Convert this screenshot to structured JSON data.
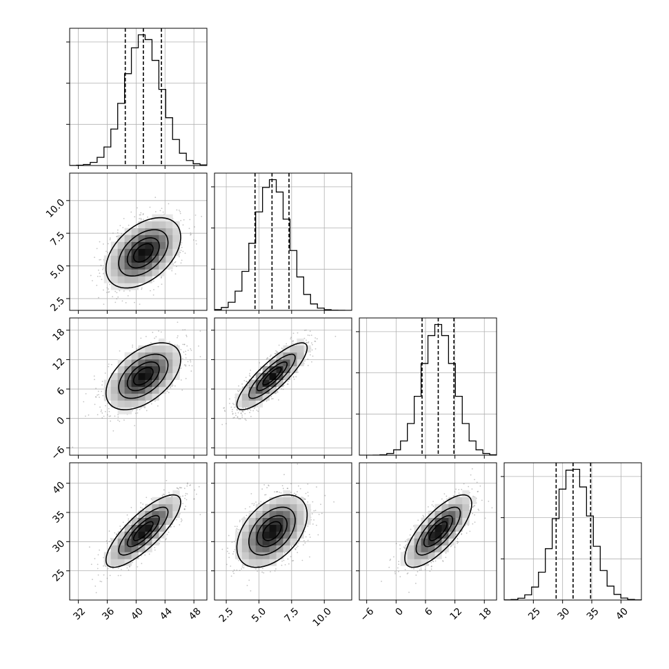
{
  "chart_data": {
    "type": "corner",
    "parameters": [
      {
        "range": [
          30.8,
          49.8
        ],
        "median": 41.0,
        "q_low": 38.5,
        "q_high": 43.5,
        "mean": 41.0,
        "sd": 2.5,
        "ticks": [
          {
            "v": 32,
            "label": "32"
          },
          {
            "v": 36,
            "label": "36"
          },
          {
            "v": 40,
            "label": "40"
          },
          {
            "v": 44,
            "label": "44"
          },
          {
            "v": 48,
            "label": "48"
          }
        ]
      },
      {
        "range": [
          1.6,
          12.1
        ],
        "median": 6.0,
        "q_low": 4.7,
        "q_high": 7.3,
        "mean": 6.0,
        "sd": 1.3,
        "ticks": [
          {
            "v": 2.5,
            "label": "2.5"
          },
          {
            "v": 5.0,
            "label": "5.0"
          },
          {
            "v": 7.5,
            "label": "7.5"
          },
          {
            "v": 10.0,
            "label": "10.0"
          }
        ]
      },
      {
        "range": [
          -7.5,
          20.5
        ],
        "median": 8.6,
        "q_low": 5.3,
        "q_high": 11.8,
        "mean": 8.6,
        "sd": 3.3,
        "ticks": [
          {
            "v": -6,
            "label": "−6"
          },
          {
            "v": 0,
            "label": "0"
          },
          {
            "v": 6,
            "label": "6"
          },
          {
            "v": 12,
            "label": "12"
          },
          {
            "v": 18,
            "label": "18"
          }
        ]
      },
      {
        "range": [
          20.0,
          43.5
        ],
        "median": 31.8,
        "q_low": 28.9,
        "q_high": 34.8,
        "mean": 31.8,
        "sd": 3.0,
        "ticks": [
          {
            "v": 25,
            "label": "25"
          },
          {
            "v": 30,
            "label": "30"
          },
          {
            "v": 35,
            "label": "35"
          },
          {
            "v": 40,
            "label": "40"
          }
        ]
      }
    ],
    "correlations": [
      [
        1.0,
        0.45,
        0.5,
        0.8
      ],
      [
        0.45,
        1.0,
        0.85,
        0.45
      ],
      [
        0.5,
        0.85,
        1.0,
        0.75
      ],
      [
        0.8,
        0.45,
        0.75,
        1.0
      ]
    ],
    "histogram_bins": 20,
    "contour_levels_sigma": [
      0.5,
      1.0,
      1.5,
      2.0
    ],
    "grid": true,
    "colors": {
      "contour": "#000000",
      "points": "#7a7a7a",
      "density_max": "#000000"
    }
  }
}
